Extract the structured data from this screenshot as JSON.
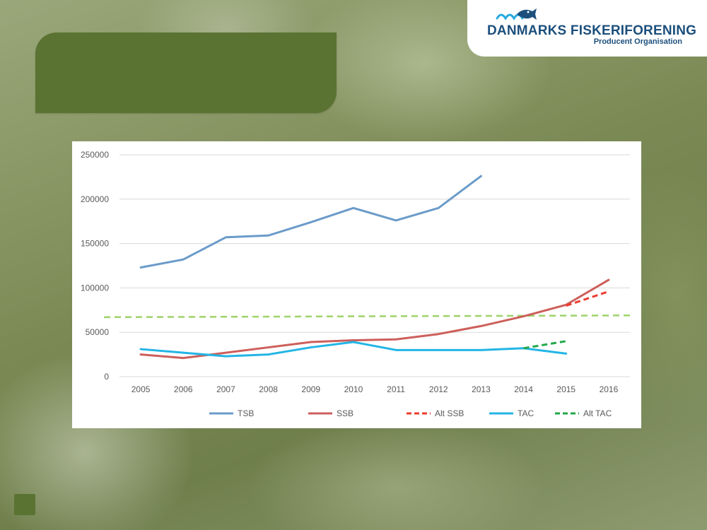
{
  "logo": {
    "name": "DANMARKS FISKERIFORENING",
    "subtitle": "Producent Organisation",
    "mark_icon": "fish-waves-icon",
    "color": "#1c4f7c"
  },
  "title_box": {
    "color": "#5b7332",
    "text": ""
  },
  "chart_data": {
    "type": "line",
    "title": "",
    "xlabel": "",
    "ylabel": "",
    "categories": [
      "2005",
      "2006",
      "2007",
      "2008",
      "2009",
      "2010",
      "2011",
      "2012",
      "2013",
      "2014",
      "2015",
      "2016"
    ],
    "yticks": [
      "0",
      "50000",
      "100000",
      "150000",
      "200000",
      "250000"
    ],
    "ylim": [
      0,
      250000
    ],
    "grid": true,
    "legend_position": "bottom",
    "series": [
      {
        "name": "TSB",
        "color": "#6b9bc9",
        "dash": false,
        "values": [
          123000,
          132000,
          157000,
          159000,
          174000,
          190000,
          176000,
          190000,
          226000,
          null,
          null,
          null
        ]
      },
      {
        "name": "SSB",
        "color": "#cd5f5b",
        "dash": false,
        "values": [
          25000,
          21000,
          27000,
          33000,
          39000,
          41000,
          42000,
          48000,
          57000,
          68000,
          81000,
          109000
        ]
      },
      {
        "name": "Alt SSB",
        "color": "#ec3b2e",
        "dash": true,
        "values": [
          null,
          null,
          null,
          null,
          null,
          null,
          null,
          null,
          null,
          null,
          80000,
          96000
        ]
      },
      {
        "name": "TAC",
        "color": "#22b5e6",
        "dash": false,
        "values": [
          31000,
          27000,
          23000,
          25000,
          33000,
          39000,
          30000,
          30000,
          30000,
          32000,
          26000,
          null
        ]
      },
      {
        "name": "Alt TAC",
        "color": "#22a84a",
        "dash": true,
        "values": [
          null,
          null,
          null,
          null,
          null,
          null,
          null,
          null,
          null,
          32000,
          40000,
          null
        ]
      }
    ],
    "reference_line": {
      "color": "#9ed36a",
      "dash": true,
      "from_value": 67000,
      "to_value": 69000
    }
  }
}
